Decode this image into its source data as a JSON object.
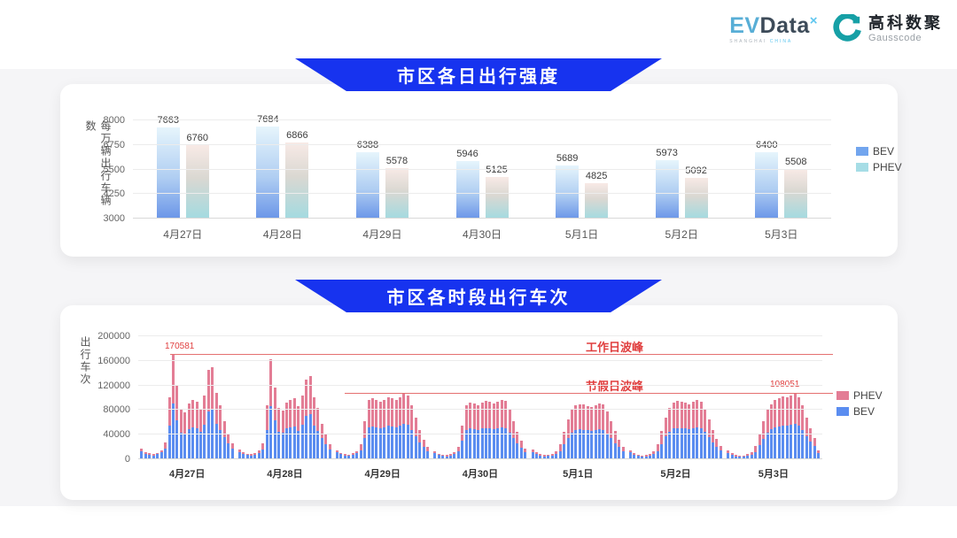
{
  "header": {
    "evdata": {
      "part_ev": "EV",
      "part_data": "Data",
      "sup": "×",
      "sub_left": "SHANGHAI",
      "sub_right": "CHINA"
    },
    "gausscode": {
      "cn": "高科数聚",
      "en": "Gausscode",
      "mark_color": "#16a0a6"
    }
  },
  "colors": {
    "banner_blue": "#1733ef",
    "bev_blue": "#5b8df0",
    "phev_pink": "#e37d95",
    "annotation_red": "#e03e3e"
  },
  "chart_data": [
    {
      "type": "bar",
      "title": "市区各日出行强度",
      "ylabel": "每万辆出行车辆数",
      "ylim": [
        3000,
        8000
      ],
      "yticks": [
        3000,
        4250,
        5500,
        6750,
        8000
      ],
      "grid": true,
      "legend_position": "right",
      "categories": [
        "4月27日",
        "4月28日",
        "4月29日",
        "4月30日",
        "5月1日",
        "5月2日",
        "5月3日"
      ],
      "series": [
        {
          "name": "BEV",
          "values": [
            7663,
            7684,
            6388,
            5946,
            5689,
            5973,
            6400
          ]
        },
        {
          "name": "PHEV",
          "values": [
            6760,
            6866,
            5578,
            5125,
            4825,
            5092,
            5508
          ]
        }
      ]
    },
    {
      "type": "bar",
      "stacked": true,
      "title": "市区各时段出行车次",
      "ylabel": "出行车次",
      "ylim": [
        0,
        200000
      ],
      "yticks": [
        0,
        40000,
        80000,
        120000,
        160000,
        200000
      ],
      "grid": true,
      "legend_position": "right",
      "x_unit": "hours 0-23 within each day",
      "series_order_bottom_to_top": [
        "BEV",
        "PHEV"
      ],
      "legend": [
        "PHEV",
        "BEV"
      ],
      "annotations": {
        "workday_peak_label": "工作日波峰",
        "workday_peak_value": 170581,
        "holiday_peak_label": "节假日波峰",
        "holiday_peak_value": 108051
      },
      "days": [
        {
          "date": "4月27日",
          "bev": [
            13000,
            9000,
            7000,
            6000,
            8000,
            11000,
            17000,
            55000,
            90000,
            64000,
            43000,
            41000,
            49000,
            52000,
            51000,
            44000,
            56000,
            78000,
            80000,
            58000,
            48000,
            36000,
            26000,
            18000
          ],
          "phev": [
            4000,
            3000,
            2500,
            2500,
            2500,
            4000,
            11000,
            46000,
            80581,
            55000,
            37000,
            35000,
            42000,
            44000,
            43000,
            38000,
            48000,
            67000,
            69000,
            50000,
            40000,
            26000,
            16000,
            8000
          ]
        },
        {
          "date": "4月28日",
          "bev": [
            12000,
            8000,
            7000,
            6000,
            7500,
            10500,
            16000,
            48000,
            86000,
            63000,
            45000,
            43000,
            50000,
            52000,
            53000,
            46000,
            56000,
            70000,
            73000,
            55000,
            46000,
            34000,
            25000,
            16000
          ],
          "phev": [
            4000,
            3000,
            2000,
            2000,
            2500,
            4000,
            10000,
            40000,
            77000,
            54000,
            38000,
            36000,
            42000,
            45000,
            46000,
            40000,
            47000,
            60000,
            62000,
            46000,
            38000,
            24000,
            15000,
            8000
          ]
        },
        {
          "date": "4月29日",
          "bev": [
            11000,
            8000,
            6500,
            5500,
            7000,
            10000,
            15000,
            34000,
            52000,
            53000,
            52000,
            50000,
            52000,
            55000,
            53000,
            52000,
            55000,
            57000,
            56000,
            48000,
            37000,
            28000,
            20000,
            13500
          ],
          "phev": [
            4000,
            2500,
            2000,
            2000,
            2500,
            3500,
            9000,
            28000,
            44000,
            46000,
            44000,
            43000,
            45000,
            46000,
            46000,
            44000,
            46000,
            49000,
            47000,
            40000,
            31000,
            20000,
            12000,
            6500
          ]
        },
        {
          "date": "4月30日",
          "bev": [
            10000,
            7000,
            5500,
            5000,
            6500,
            8500,
            12500,
            30000,
            48000,
            50000,
            49000,
            48000,
            50000,
            51000,
            50000,
            49000,
            51000,
            52000,
            51000,
            43000,
            34000,
            25500,
            18500,
            12000
          ],
          "phev": [
            3000,
            2000,
            2000,
            2000,
            2000,
            3500,
            7500,
            25000,
            40000,
            42000,
            41000,
            40000,
            42000,
            44000,
            43000,
            41000,
            43000,
            45000,
            44000,
            37000,
            28000,
            18500,
            11500,
            6000
          ]
        },
        {
          "date": "5月1日",
          "bev": [
            12000,
            8000,
            6000,
            5000,
            5500,
            6500,
            8000,
            13500,
            24000,
            35000,
            43000,
            47500,
            48500,
            48000,
            47000,
            46000,
            47500,
            49000,
            48000,
            42000,
            34000,
            26500,
            20000,
            13500
          ],
          "phev": [
            4000,
            3000,
            2000,
            2000,
            2000,
            2500,
            5000,
            11500,
            21000,
            30000,
            37000,
            40500,
            41500,
            41000,
            40000,
            39000,
            40500,
            42000,
            41000,
            36000,
            28000,
            19500,
            12000,
            6500
          ]
        },
        {
          "date": "5月2日",
          "bev": [
            11000,
            7500,
            5500,
            5000,
            5000,
            6000,
            8000,
            13000,
            25000,
            37000,
            45000,
            50000,
            51000,
            51000,
            50000,
            48500,
            50000,
            52000,
            51000,
            44000,
            36000,
            28000,
            20500,
            14000
          ],
          "phev": [
            4000,
            2500,
            2000,
            1500,
            2000,
            2500,
            4500,
            11000,
            21000,
            31000,
            39000,
            42000,
            44000,
            43000,
            42000,
            41500,
            43000,
            44000,
            43000,
            38000,
            29000,
            20000,
            12500,
            7000
          ]
        },
        {
          "date": "5月3日",
          "bev": [
            10500,
            7000,
            5000,
            4500,
            5000,
            6000,
            7500,
            12000,
            23000,
            33500,
            43000,
            48500,
            52000,
            54000,
            55000,
            54500,
            56000,
            58000,
            54500,
            47500,
            37000,
            29000,
            21000,
            10000
          ],
          "phev": [
            3500,
            2500,
            2000,
            1500,
            1500,
            2000,
            4500,
            10000,
            19000,
            28500,
            37000,
            41500,
            44000,
            46000,
            47000,
            46500,
            48000,
            50051,
            46500,
            40500,
            31000,
            21000,
            13000,
            5000
          ]
        }
      ]
    }
  ]
}
